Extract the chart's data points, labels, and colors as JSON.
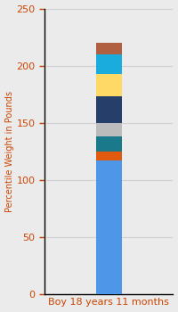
{
  "category": "Boy 18 years 11 months",
  "segments": [
    {
      "value": 117,
      "color": "#4D96E8"
    },
    {
      "value": 8,
      "color": "#E05A10"
    },
    {
      "value": 13,
      "color": "#1A7A8C"
    },
    {
      "value": 12,
      "color": "#BCBCBC"
    },
    {
      "value": 23,
      "color": "#253F6A"
    },
    {
      "value": 20,
      "color": "#FFD966"
    },
    {
      "value": 17,
      "color": "#1AACDC"
    },
    {
      "value": 10,
      "color": "#B06040"
    }
  ],
  "ylabel": "Percentile Weight in Pounds",
  "ylim": [
    0,
    250
  ],
  "yticks": [
    0,
    50,
    100,
    150,
    200,
    250
  ],
  "background_color": "#EBEBEB",
  "bar_width": 0.4,
  "xlabel_color": "#CC4400",
  "ylabel_color": "#CC4400",
  "tick_color": "#CC4400",
  "grid_color": "#D0D0D0",
  "tick_fontsize": 8,
  "xlabel_fontsize": 8,
  "ylabel_fontsize": 7,
  "xlim": [
    -1,
    1
  ]
}
